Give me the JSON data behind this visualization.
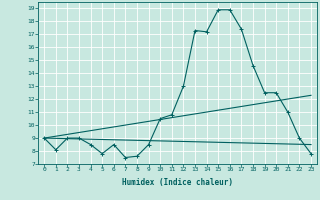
{
  "xlabel": "Humidex (Indice chaleur)",
  "ylabel": "",
  "bg_color": "#c8e8e0",
  "grid_color": "#ffffff",
  "line_color": "#006060",
  "xlim": [
    -0.5,
    23.5
  ],
  "ylim": [
    7.0,
    19.5
  ],
  "yticks": [
    7,
    8,
    9,
    10,
    11,
    12,
    13,
    14,
    15,
    16,
    17,
    18,
    19
  ],
  "xticks": [
    0,
    1,
    2,
    3,
    4,
    5,
    6,
    7,
    8,
    9,
    10,
    11,
    12,
    13,
    14,
    15,
    16,
    17,
    18,
    19,
    20,
    21,
    22,
    23
  ],
  "line1_x": [
    0,
    1,
    2,
    3,
    4,
    5,
    6,
    7,
    8,
    9,
    10,
    11,
    12,
    13,
    14,
    15,
    16,
    17,
    18,
    19,
    20,
    21,
    22,
    23
  ],
  "line1_y": [
    9.0,
    8.1,
    9.0,
    9.0,
    8.5,
    7.8,
    8.5,
    7.5,
    7.6,
    8.5,
    10.5,
    10.8,
    13.0,
    17.3,
    17.2,
    18.9,
    18.9,
    17.4,
    14.6,
    12.5,
    12.5,
    11.0,
    9.0,
    7.8
  ],
  "line2_x": [
    0,
    23
  ],
  "line2_y": [
    9.0,
    12.3
  ],
  "line3_x": [
    0,
    23
  ],
  "line3_y": [
    9.0,
    8.5
  ],
  "marker": "+",
  "markersize": 3.5,
  "linewidth": 0.8,
  "font_color": "#006060",
  "xlabel_fontsize": 5.5,
  "tick_fontsize": 4.5
}
